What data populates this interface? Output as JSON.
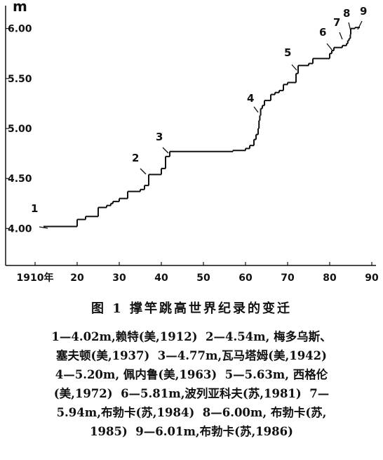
{
  "chart_data": {
    "type": "step",
    "y_axis_label": "m",
    "x": [
      12,
      20,
      22,
      25,
      27,
      28,
      28.5,
      30,
      32,
      35,
      36,
      37,
      40,
      41,
      42,
      57,
      60,
      61,
      62,
      62.5,
      63,
      63.2,
      63.4,
      63.6,
      64,
      64.5,
      66,
      67,
      68,
      69,
      70,
      72,
      72.5,
      75,
      76,
      80,
      80.5,
      81,
      83,
      84,
      84.3,
      84.6,
      84.9,
      85,
      86
    ],
    "values": [
      4.02,
      4.09,
      4.12,
      4.21,
      4.23,
      4.25,
      4.27,
      4.3,
      4.37,
      4.39,
      4.43,
      4.54,
      4.6,
      4.72,
      4.77,
      4.78,
      4.8,
      4.83,
      4.89,
      4.94,
      5.0,
      5.08,
      5.13,
      5.2,
      5.23,
      5.28,
      5.34,
      5.36,
      5.38,
      5.44,
      5.46,
      5.55,
      5.63,
      5.65,
      5.7,
      5.75,
      5.78,
      5.81,
      5.83,
      5.85,
      5.88,
      5.9,
      5.94,
      6.0,
      6.01
    ],
    "color": "#111111",
    "xlim": [
      3,
      91
    ],
    "ylim": [
      3.63,
      6.18
    ],
    "xticks": [
      {
        "value": 10,
        "label": "1910年"
      },
      20,
      30,
      40,
      50,
      60,
      70,
      80,
      90
    ],
    "yticks": [
      {
        "value": 4.0,
        "label": "4.00"
      },
      {
        "value": 4.5,
        "label": "4.50"
      },
      {
        "value": 5.0,
        "label": "5.00"
      },
      {
        "value": 5.5,
        "label": "5.50"
      },
      {
        "value": 6.0,
        "label": "6.00"
      }
    ],
    "annotations": [
      "1",
      "2",
      "3",
      "4",
      "5",
      "6",
      "7",
      "8",
      "9"
    ],
    "caption": "图 1  撑竿跳高世界纪录的变迁",
    "notes": [
      "1—4.02m,赖特(美,1912)  2—4.54m, 梅多乌斯、",
      "塞夫顿(美,1937)  3—4.77m,瓦马塔姆(美,1942)",
      "4—5.20m, 佩内鲁(美,1963)  5—5.63m, 西格伦",
      "(美,1972)  6—5.81m,波列亚科夫(苏,1981)  7—",
      "5.94m,布勃卡(苏,1984)  8—6.00m, 布勃卡(苏,",
      "1985)  9—6.01m,布勃卡(苏,1986)"
    ]
  }
}
